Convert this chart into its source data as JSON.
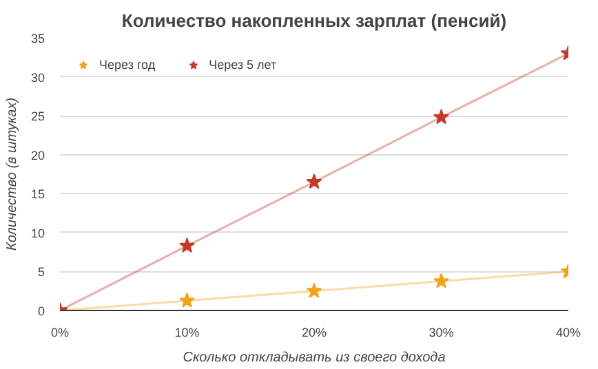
{
  "chart_data": {
    "type": "line",
    "title": "Количество накопленных зарплат (пенсий)",
    "xlabel": "Сколько откладывать из своего дохода",
    "ylabel": "Количество (в штуках)",
    "x": [
      0,
      10,
      20,
      30,
      40
    ],
    "series": [
      {
        "name": "Через год",
        "color": "#f4a21d",
        "values": [
          0,
          1.25,
          2.5,
          3.75,
          5
        ]
      },
      {
        "name": "Через 5 лет",
        "color": "#c8382a",
        "values": [
          0,
          8.3,
          16.5,
          24.8,
          33
        ]
      }
    ],
    "xlim": [
      0,
      40
    ],
    "xticks": [
      {
        "value": 0,
        "label": "0%"
      },
      {
        "value": 10,
        "label": "10%"
      },
      {
        "value": 20,
        "label": "20%"
      },
      {
        "value": 30,
        "label": "30%"
      },
      {
        "value": 40,
        "label": "40%"
      }
    ],
    "ylim": [
      0,
      35
    ],
    "yticks": [
      0,
      5,
      10,
      15,
      20,
      25,
      30,
      35
    ],
    "grid": "y",
    "legend": "top left",
    "marker": "star",
    "line_style": "solid"
  }
}
